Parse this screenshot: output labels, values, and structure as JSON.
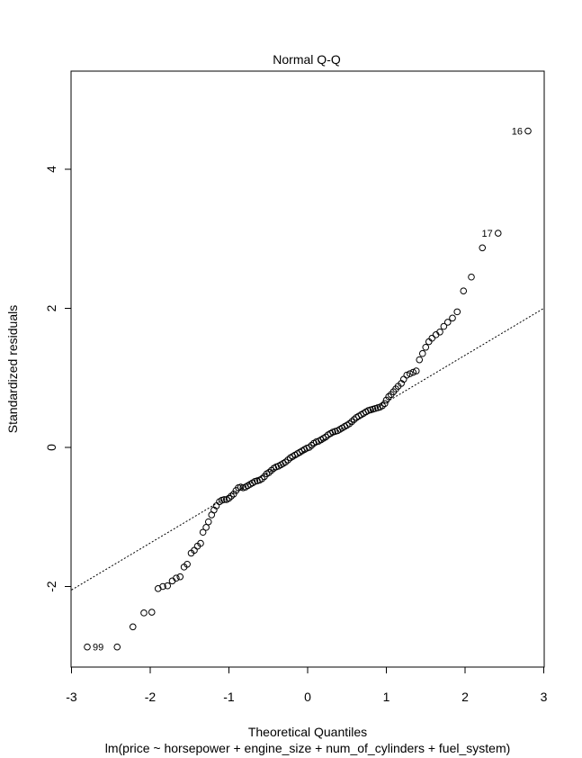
{
  "chart_data": {
    "type": "scatter",
    "title": "Normal Q-Q",
    "xlabel": "Theoretical Quantiles",
    "ylabel": "Standardized residuals",
    "subtitle": "lm(price ~ horsepower + engine_size + num_of_cylinders + fuel_system)",
    "xlim": [
      -3,
      3
    ],
    "ylim": [
      -3.2,
      5.5
    ],
    "xticks": [
      -3,
      -2,
      -1,
      0,
      1,
      2,
      3
    ],
    "yticks": [
      -2,
      0,
      2,
      4
    ],
    "grid": false,
    "reference_line": {
      "x": [
        -3,
        3
      ],
      "y": [
        -2.05,
        2.0
      ],
      "style": "dotted"
    },
    "labeled_points": [
      {
        "label": "16",
        "x": 2.8,
        "y": 4.55
      },
      {
        "label": "17",
        "x": 2.42,
        "y": 3.08
      },
      {
        "label": "99",
        "x": -2.8,
        "y": -2.87
      }
    ],
    "points": [
      [
        -2.8,
        -2.87
      ],
      [
        -2.42,
        -2.87
      ],
      [
        -2.22,
        -2.58
      ],
      [
        -2.08,
        -2.38
      ],
      [
        -1.98,
        -2.37
      ],
      [
        -1.9,
        -2.03
      ],
      [
        -1.84,
        -2.0
      ],
      [
        -1.78,
        -1.99
      ],
      [
        -1.72,
        -1.92
      ],
      [
        -1.67,
        -1.88
      ],
      [
        -1.62,
        -1.86
      ],
      [
        -1.57,
        -1.72
      ],
      [
        -1.53,
        -1.68
      ],
      [
        -1.48,
        -1.52
      ],
      [
        -1.44,
        -1.48
      ],
      [
        -1.4,
        -1.42
      ],
      [
        -1.36,
        -1.38
      ],
      [
        -1.33,
        -1.22
      ],
      [
        -1.29,
        -1.15
      ],
      [
        -1.26,
        -1.07
      ],
      [
        -1.22,
        -0.97
      ],
      [
        -1.19,
        -0.9
      ],
      [
        -1.16,
        -0.84
      ],
      [
        -1.12,
        -0.78
      ],
      [
        -1.09,
        -0.76
      ],
      [
        -1.06,
        -0.75
      ],
      [
        -1.03,
        -0.75
      ],
      [
        -1.0,
        -0.73
      ],
      [
        -0.97,
        -0.7
      ],
      [
        -0.94,
        -0.67
      ],
      [
        -0.91,
        -0.62
      ],
      [
        -0.88,
        -0.58
      ],
      [
        -0.85,
        -0.57
      ],
      [
        -0.82,
        -0.58
      ],
      [
        -0.79,
        -0.57
      ],
      [
        -0.76,
        -0.55
      ],
      [
        -0.73,
        -0.53
      ],
      [
        -0.7,
        -0.51
      ],
      [
        -0.67,
        -0.49
      ],
      [
        -0.64,
        -0.48
      ],
      [
        -0.61,
        -0.47
      ],
      [
        -0.58,
        -0.45
      ],
      [
        -0.55,
        -0.42
      ],
      [
        -0.52,
        -0.38
      ],
      [
        -0.49,
        -0.36
      ],
      [
        -0.46,
        -0.33
      ],
      [
        -0.43,
        -0.3
      ],
      [
        -0.4,
        -0.28
      ],
      [
        -0.37,
        -0.27
      ],
      [
        -0.34,
        -0.25
      ],
      [
        -0.31,
        -0.23
      ],
      [
        -0.28,
        -0.21
      ],
      [
        -0.25,
        -0.18
      ],
      [
        -0.22,
        -0.15
      ],
      [
        -0.19,
        -0.13
      ],
      [
        -0.16,
        -0.11
      ],
      [
        -0.13,
        -0.09
      ],
      [
        -0.1,
        -0.07
      ],
      [
        -0.07,
        -0.05
      ],
      [
        -0.04,
        -0.03
      ],
      [
        -0.01,
        -0.01
      ],
      [
        0.02,
        0.0
      ],
      [
        0.05,
        0.03
      ],
      [
        0.08,
        0.06
      ],
      [
        0.11,
        0.08
      ],
      [
        0.14,
        0.09
      ],
      [
        0.17,
        0.11
      ],
      [
        0.2,
        0.13
      ],
      [
        0.23,
        0.15
      ],
      [
        0.26,
        0.18
      ],
      [
        0.29,
        0.2
      ],
      [
        0.32,
        0.22
      ],
      [
        0.35,
        0.23
      ],
      [
        0.38,
        0.24
      ],
      [
        0.41,
        0.26
      ],
      [
        0.44,
        0.28
      ],
      [
        0.47,
        0.3
      ],
      [
        0.5,
        0.32
      ],
      [
        0.53,
        0.34
      ],
      [
        0.56,
        0.37
      ],
      [
        0.59,
        0.4
      ],
      [
        0.62,
        0.43
      ],
      [
        0.65,
        0.45
      ],
      [
        0.68,
        0.47
      ],
      [
        0.71,
        0.49
      ],
      [
        0.74,
        0.51
      ],
      [
        0.77,
        0.53
      ],
      [
        0.8,
        0.54
      ],
      [
        0.83,
        0.55
      ],
      [
        0.86,
        0.56
      ],
      [
        0.89,
        0.57
      ],
      [
        0.92,
        0.58
      ],
      [
        0.95,
        0.6
      ],
      [
        0.98,
        0.63
      ],
      [
        1.0,
        0.68
      ],
      [
        1.03,
        0.73
      ],
      [
        1.06,
        0.76
      ],
      [
        1.09,
        0.8
      ],
      [
        1.12,
        0.84
      ],
      [
        1.15,
        0.88
      ],
      [
        1.19,
        0.92
      ],
      [
        1.22,
        0.98
      ],
      [
        1.26,
        1.04
      ],
      [
        1.3,
        1.06
      ],
      [
        1.34,
        1.08
      ],
      [
        1.38,
        1.1
      ],
      [
        1.42,
        1.26
      ],
      [
        1.46,
        1.35
      ],
      [
        1.5,
        1.44
      ],
      [
        1.54,
        1.52
      ],
      [
        1.58,
        1.57
      ],
      [
        1.63,
        1.62
      ],
      [
        1.68,
        1.66
      ],
      [
        1.73,
        1.74
      ],
      [
        1.78,
        1.8
      ],
      [
        1.84,
        1.86
      ],
      [
        1.9,
        1.95
      ],
      [
        1.98,
        2.25
      ],
      [
        2.08,
        2.45
      ],
      [
        2.22,
        2.87
      ],
      [
        2.42,
        3.08
      ],
      [
        2.8,
        4.55
      ]
    ]
  }
}
